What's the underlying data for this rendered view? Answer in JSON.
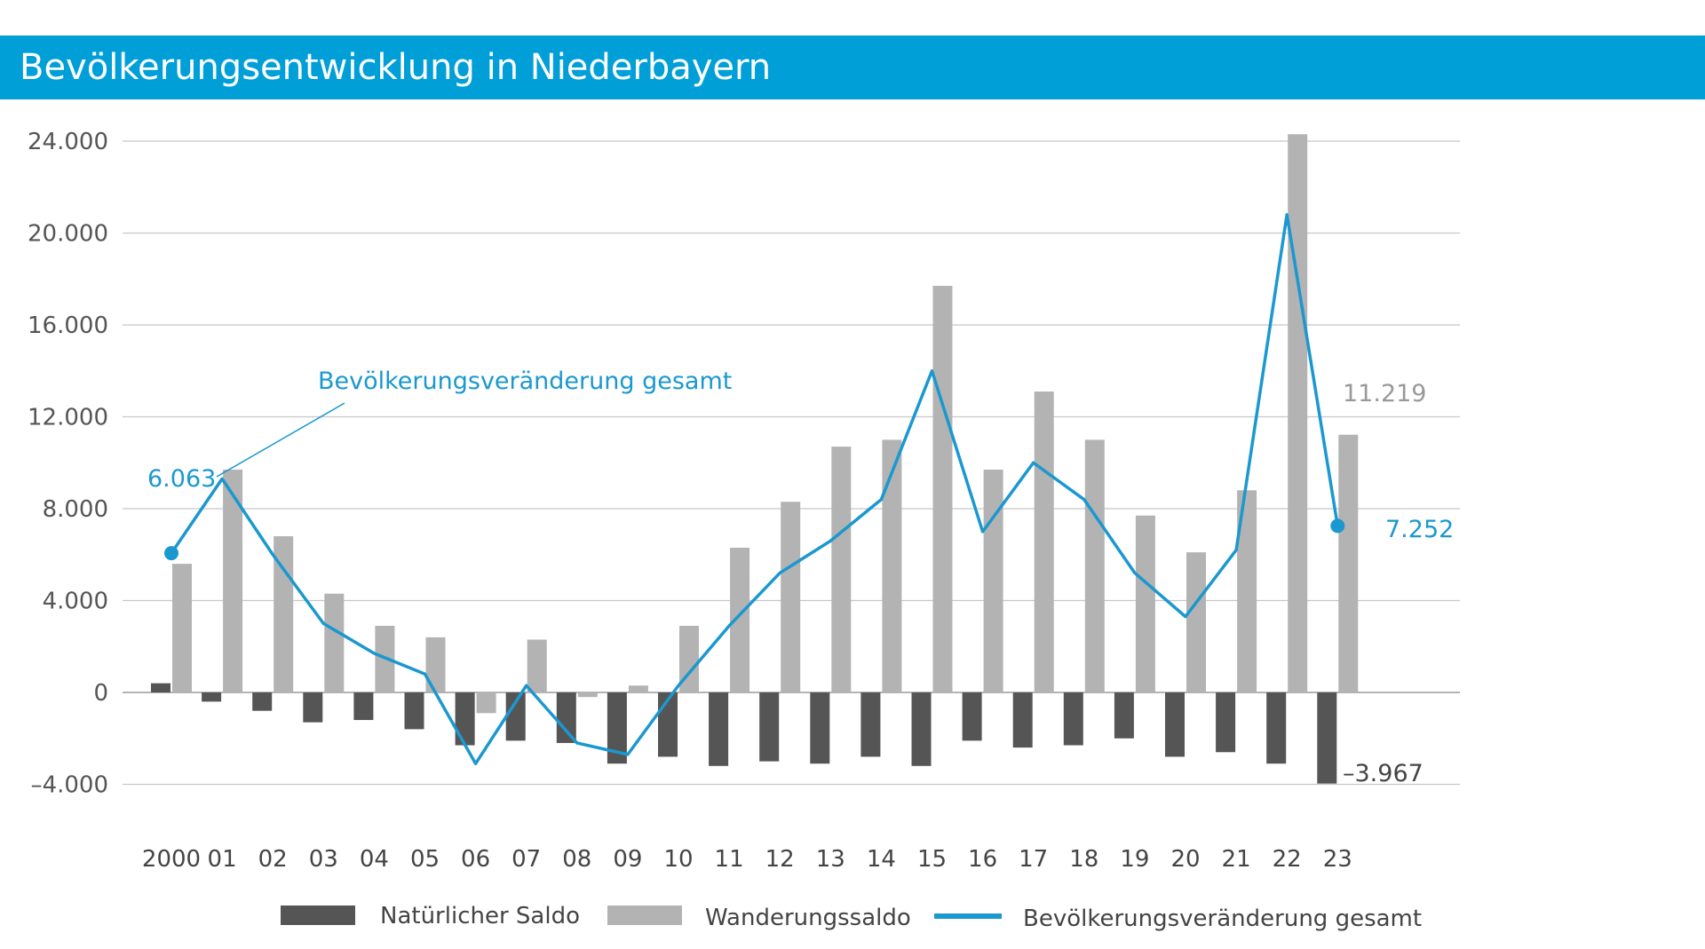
{
  "header": {
    "title": "Bevölkerungsentwicklung in Niederbayern"
  },
  "colors": {
    "header_bg": "#009fd8",
    "natural": "#555555",
    "migration": "#b3b3b3",
    "total": "#1a98cf",
    "grid": "#c8c8c8"
  },
  "chart_data": {
    "type": "bar",
    "title": "Bevölkerungsentwicklung in Niederbayern",
    "categories": [
      "2000",
      "01",
      "02",
      "03",
      "04",
      "05",
      "06",
      "07",
      "08",
      "09",
      "10",
      "11",
      "12",
      "13",
      "14",
      "15",
      "16",
      "17",
      "18",
      "19",
      "20",
      "21",
      "22",
      "23"
    ],
    "ylim": [
      -4000,
      24000
    ],
    "yticks": [
      24000,
      20000,
      16000,
      12000,
      8000,
      4000,
      0,
      -4000
    ],
    "ytick_labels": [
      "24.000",
      "20.000",
      "16.000",
      "12.000",
      "8.000",
      "4.000",
      "0",
      "–4.000"
    ],
    "grid": true,
    "legend_position": "bottom",
    "series": [
      {
        "name": "Natürlicher Saldo",
        "type": "bar",
        "values": [
          400,
          -400,
          -800,
          -1300,
          -1200,
          -1600,
          -2300,
          -2100,
          -2200,
          -3100,
          -2800,
          -3200,
          -3000,
          -3100,
          -2800,
          -3200,
          -2100,
          -2400,
          -2300,
          -2000,
          -2800,
          -2600,
          -3100,
          -3967
        ]
      },
      {
        "name": "Wanderungssaldo",
        "type": "bar",
        "values": [
          5600,
          9700,
          6800,
          4300,
          2900,
          2400,
          -900,
          2300,
          -200,
          300,
          2900,
          6300,
          8300,
          10700,
          11000,
          17700,
          9700,
          13100,
          11000,
          7700,
          6100,
          8800,
          24300,
          11219
        ]
      },
      {
        "name": "Bevölkerungsveränderung gesamt",
        "type": "line",
        "values": [
          6063,
          9300,
          6000,
          3000,
          1700,
          800,
          -3100,
          300,
          -2200,
          -2700,
          300,
          2900,
          5200,
          6600,
          8400,
          14000,
          7000,
          10000,
          8400,
          5200,
          3300,
          6200,
          20800,
          7252
        ]
      }
    ],
    "annotations": {
      "line_label": "Bevölkerungsveränderung gesamt",
      "first_total": "6.063",
      "last_total": "7.252",
      "last_migration": "11.219",
      "last_natural": "–3.967"
    }
  }
}
